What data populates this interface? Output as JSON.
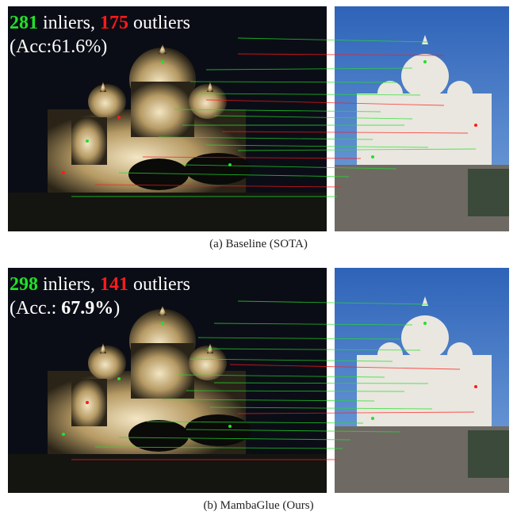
{
  "colors": {
    "inlier": "#22e02a",
    "outlier": "#ff1a1a",
    "night_sky": "#0b0d16",
    "day_sky": "#3a6fc0"
  },
  "panels": [
    {
      "inliers": "281",
      "inliers_word": "inliers,",
      "outliers": "175",
      "outliers_word": "outliers",
      "acc_prefix": "(Acc:61.6%)",
      "acc_value": "",
      "acc_suffix": "",
      "caption": "(a) Baseline (SOTA)"
    },
    {
      "inliers": "298",
      "inliers_word": "inliers,",
      "outliers": "141",
      "outliers_word": "outliers",
      "acc_prefix": "(Acc.: ",
      "acc_value": "67.9%",
      "acc_suffix": ")",
      "caption": "(b) MambaGlue (Ours)"
    }
  ]
}
